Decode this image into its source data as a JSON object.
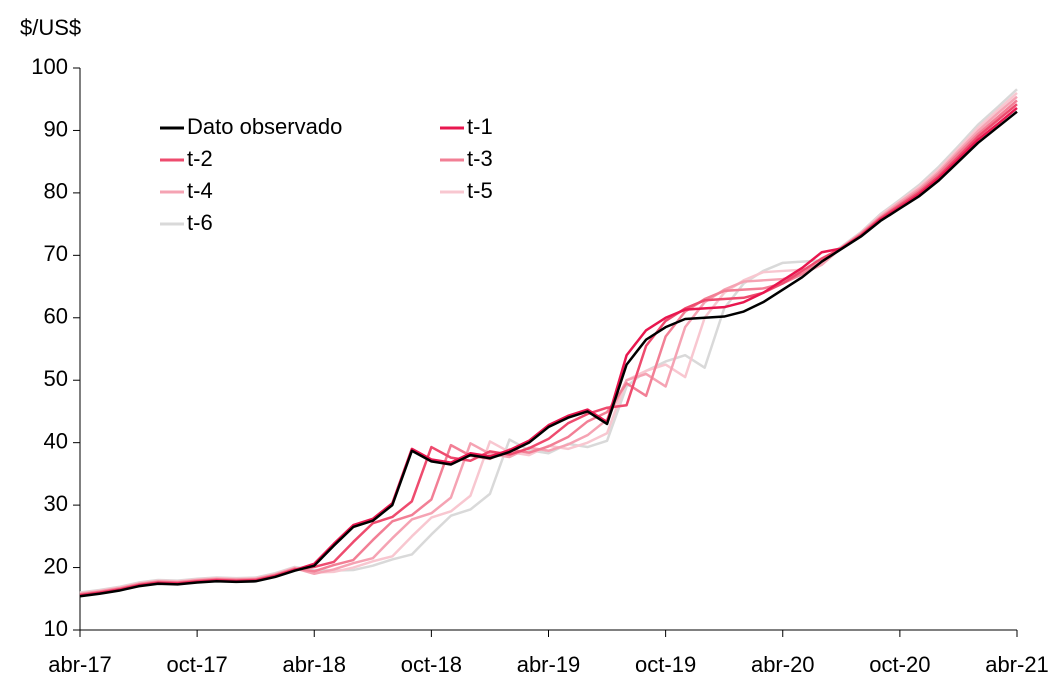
{
  "chart_data": {
    "type": "line",
    "y_label": "$/US$",
    "categories": [
      "abr-17",
      null,
      null,
      null,
      null,
      null,
      "oct-17",
      null,
      null,
      null,
      null,
      null,
      "abr-18",
      null,
      null,
      null,
      null,
      null,
      "oct-18",
      null,
      null,
      null,
      null,
      null,
      "abr-19",
      null,
      null,
      null,
      null,
      null,
      "oct-19",
      null,
      null,
      null,
      null,
      null,
      "abr-20",
      null,
      null,
      null,
      null,
      null,
      "oct-20",
      null,
      null,
      null,
      null,
      null,
      "abr-21"
    ],
    "ylim": [
      10,
      100
    ],
    "yticks": [
      10,
      20,
      30,
      40,
      50,
      60,
      70,
      80,
      90,
      100
    ],
    "grid": false,
    "legend": "upper left",
    "series": [
      {
        "name": "Dato observado",
        "color": "#000000",
        "values": [
          15.4,
          15.8,
          16.3,
          17.0,
          17.4,
          17.3,
          17.6,
          17.8,
          17.7,
          17.8,
          18.5,
          19.5,
          20.3,
          23.5,
          26.5,
          27.5,
          30.0,
          38.7,
          37.0,
          36.5,
          38.0,
          37.5,
          38.5,
          40.0,
          42.5,
          44.0,
          45.0,
          43.0,
          52.5,
          56.5,
          58.5,
          59.8,
          60.0,
          60.2,
          61.0,
          62.5,
          64.5,
          66.5,
          69.0,
          71.0,
          73.0,
          75.5,
          77.5,
          79.5,
          82.0,
          85.0,
          88.0,
          90.5,
          93.0
        ]
      },
      {
        "name": "t-1",
        "color": "#e8174f",
        "values": [
          15.5,
          15.9,
          16.4,
          17.1,
          17.5,
          17.4,
          17.7,
          17.9,
          17.8,
          17.9,
          18.6,
          19.6,
          20.6,
          23.8,
          26.8,
          27.8,
          30.3,
          39.0,
          37.3,
          36.8,
          38.3,
          37.8,
          38.8,
          40.3,
          42.8,
          44.3,
          45.3,
          43.3,
          54.0,
          58.0,
          60.0,
          61.3,
          61.5,
          61.7,
          62.5,
          64.0,
          66.0,
          68.0,
          70.5,
          71.1,
          73.1,
          75.7,
          77.7,
          79.8,
          82.4,
          85.4,
          88.5,
          91.0,
          93.6
        ]
      },
      {
        "name": "t-2",
        "color": "#ee4b6e",
        "values": [
          15.6,
          16.0,
          16.5,
          17.2,
          17.6,
          17.5,
          17.8,
          18.0,
          17.9,
          18.0,
          18.7,
          19.7,
          20.1,
          20.9,
          24.1,
          27.1,
          28.1,
          30.6,
          39.3,
          37.6,
          37.1,
          38.6,
          38.1,
          39.1,
          40.6,
          43.1,
          44.6,
          45.6,
          46.0,
          55.5,
          59.5,
          61.5,
          62.8,
          63.0,
          63.2,
          64.0,
          65.5,
          67.5,
          69.5,
          71.1,
          73.2,
          75.9,
          78.0,
          80.1,
          82.7,
          85.8,
          89.0,
          91.6,
          94.2
        ]
      },
      {
        "name": "t-3",
        "color": "#f27f95",
        "values": [
          15.7,
          16.1,
          16.6,
          17.3,
          17.7,
          17.6,
          17.9,
          18.1,
          18.0,
          18.1,
          18.8,
          19.8,
          19.4,
          20.4,
          21.2,
          24.4,
          27.4,
          28.4,
          30.9,
          39.6,
          37.9,
          37.4,
          38.9,
          38.4,
          39.4,
          40.9,
          43.4,
          44.9,
          49.5,
          47.5,
          57.0,
          61.0,
          63.0,
          64.3,
          64.5,
          64.7,
          65.5,
          67.0,
          69.0,
          71.2,
          73.4,
          76.0,
          78.2,
          80.4,
          83.1,
          86.3,
          89.4,
          92.1,
          94.8
        ]
      },
      {
        "name": "t-4",
        "color": "#f5a3b3",
        "values": [
          15.8,
          16.2,
          16.7,
          17.4,
          17.8,
          17.7,
          18.0,
          18.2,
          18.1,
          18.2,
          18.9,
          19.9,
          19.0,
          19.7,
          20.7,
          21.5,
          24.7,
          27.7,
          28.7,
          31.2,
          39.9,
          38.2,
          37.7,
          39.2,
          38.7,
          39.7,
          41.2,
          43.7,
          50.0,
          51.0,
          49.0,
          58.5,
          62.5,
          64.5,
          65.8,
          66.0,
          66.2,
          67.0,
          68.5,
          71.2,
          73.5,
          76.2,
          78.5,
          80.7,
          83.4,
          86.7,
          89.9,
          92.7,
          95.4
        ]
      },
      {
        "name": "t-5",
        "color": "#f8c7d0",
        "values": [
          15.9,
          16.3,
          16.8,
          17.5,
          17.9,
          17.8,
          18.1,
          18.3,
          18.2,
          18.3,
          19.0,
          20.0,
          19.2,
          19.3,
          20.0,
          21.0,
          21.8,
          25.0,
          28.0,
          29.0,
          31.5,
          40.2,
          38.5,
          38.0,
          39.5,
          39.0,
          40.0,
          41.5,
          50.0,
          51.5,
          52.5,
          50.5,
          60.0,
          64.0,
          66.0,
          67.3,
          67.5,
          67.7,
          68.5,
          71.3,
          73.6,
          76.4,
          78.7,
          81.0,
          83.8,
          87.1,
          90.4,
          93.2,
          96.0
        ]
      },
      {
        "name": "t-6",
        "color": "#d9d9d9",
        "values": [
          16.0,
          16.4,
          16.9,
          17.6,
          18.0,
          17.9,
          18.2,
          18.4,
          18.3,
          18.4,
          19.1,
          20.1,
          19.6,
          19.5,
          19.6,
          20.3,
          21.3,
          22.1,
          25.3,
          28.3,
          29.3,
          31.8,
          40.5,
          38.8,
          38.3,
          39.8,
          39.3,
          40.3,
          49.0,
          51.5,
          53.0,
          54.0,
          52.0,
          61.5,
          65.5,
          67.5,
          68.8,
          69.0,
          69.2,
          71.4,
          73.7,
          76.6,
          78.9,
          81.3,
          84.2,
          87.5,
          90.9,
          93.7,
          96.6
        ]
      }
    ]
  }
}
